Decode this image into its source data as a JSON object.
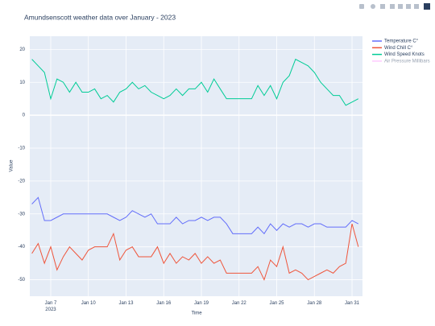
{
  "chart_data": {
    "type": "line",
    "title": "Amundsenscott weather data over January - 2023",
    "x_label": "Time",
    "y_label": "Value",
    "x": [
      "2023-01-05T12:00",
      "2023-01-06T00:00",
      "2023-01-06T12:00",
      "2023-01-07T00:00",
      "2023-01-07T12:00",
      "2023-01-08T00:00",
      "2023-01-08T12:00",
      "2023-01-09T00:00",
      "2023-01-09T12:00",
      "2023-01-10T00:00",
      "2023-01-10T12:00",
      "2023-01-11T00:00",
      "2023-01-11T12:00",
      "2023-01-12T00:00",
      "2023-01-12T12:00",
      "2023-01-13T00:00",
      "2023-01-13T12:00",
      "2023-01-14T00:00",
      "2023-01-14T12:00",
      "2023-01-15T00:00",
      "2023-01-15T12:00",
      "2023-01-16T00:00",
      "2023-01-16T12:00",
      "2023-01-17T00:00",
      "2023-01-17T12:00",
      "2023-01-18T00:00",
      "2023-01-18T12:00",
      "2023-01-19T00:00",
      "2023-01-19T12:00",
      "2023-01-20T00:00",
      "2023-01-20T12:00",
      "2023-01-21T00:00",
      "2023-01-21T12:00",
      "2023-01-22T00:00",
      "2023-01-22T12:00",
      "2023-01-23T00:00",
      "2023-01-23T12:00",
      "2023-01-24T00:00",
      "2023-01-24T12:00",
      "2023-01-25T00:00",
      "2023-01-25T12:00",
      "2023-01-26T00:00",
      "2023-01-26T12:00",
      "2023-01-27T00:00",
      "2023-01-27T12:00",
      "2023-01-28T00:00",
      "2023-01-28T12:00",
      "2023-01-29T00:00",
      "2023-01-29T12:00",
      "2023-01-30T00:00",
      "2023-01-30T12:00",
      "2023-01-31T00:00",
      "2023-01-31T12:00"
    ],
    "series": [
      {
        "name": "Temperature C°",
        "color": "#636efa",
        "values": [
          -27,
          -25,
          -32,
          -32,
          -31,
          -30,
          -30,
          -30,
          -30,
          -30,
          -30,
          -30,
          -30,
          -31,
          -32,
          -31,
          -29,
          -30,
          -31,
          -30,
          -33,
          -33,
          -33,
          -31,
          -33,
          -32,
          -32,
          -31,
          -32,
          -31,
          -31,
          -33,
          -36,
          -36,
          -36,
          -36,
          -34,
          -36,
          -33,
          -35,
          -33,
          -34,
          -33,
          -33,
          -34,
          -33,
          -33,
          -34,
          -34,
          -34,
          -34,
          -32,
          -33
        ]
      },
      {
        "name": "Wind Chill C°",
        "color": "#ef553b",
        "values": [
          -42,
          -39,
          -45,
          -40,
          -47,
          -43,
          -40,
          -42,
          -44,
          -41,
          -40,
          -40,
          -40,
          -36,
          -44,
          -41,
          -40,
          -43,
          -43,
          -43,
          -40,
          -45,
          -42,
          -45,
          -43,
          -44,
          -42,
          -45,
          -43,
          -45,
          -44,
          -48,
          -48,
          -48,
          -48,
          -48,
          -46,
          -50,
          -44,
          -46,
          -40,
          -48,
          -47,
          -48,
          -50,
          -49,
          -48,
          -47,
          -48,
          -46,
          -45,
          -33,
          -40
        ]
      },
      {
        "name": "Wind Speed Knots",
        "color": "#00cc96",
        "values": [
          17,
          15,
          13,
          5,
          11,
          10,
          7,
          10,
          7,
          7,
          8,
          5,
          6,
          4,
          7,
          8,
          10,
          8,
          9,
          7,
          6,
          5,
          6,
          8,
          6,
          8,
          8,
          10,
          7,
          11,
          8,
          5,
          5,
          5,
          5,
          5,
          9,
          6,
          9,
          5,
          10,
          12,
          17,
          16,
          15,
          13,
          10,
          8,
          6,
          6,
          3,
          4,
          5
        ]
      },
      {
        "name": "Air Pressure Millibars",
        "color": "#ff97ff",
        "visible": "legendonly"
      }
    ],
    "xlim": [
      "2023-01-05T08:00",
      "2023-01-31T20:00"
    ],
    "xticks": [
      {
        "value": "2023-01-07T00:00",
        "label": "Jan 7\n2023"
      },
      {
        "value": "2023-01-10T00:00",
        "label": "Jan 10"
      },
      {
        "value": "2023-01-13T00:00",
        "label": "Jan 13"
      },
      {
        "value": "2023-01-16T00:00",
        "label": "Jan 16"
      },
      {
        "value": "2023-01-19T00:00",
        "label": "Jan 19"
      },
      {
        "value": "2023-01-22T00:00",
        "label": "Jan 22"
      },
      {
        "value": "2023-01-25T00:00",
        "label": "Jan 25"
      },
      {
        "value": "2023-01-28T00:00",
        "label": "Jan 28"
      },
      {
        "value": "2023-01-31T00:00",
        "label": "Jan 31"
      }
    ],
    "ylim": [
      -55,
      24
    ],
    "yticks": [
      -50,
      -40,
      -30,
      -20,
      -10,
      0,
      10,
      20
    ],
    "grid": true
  }
}
